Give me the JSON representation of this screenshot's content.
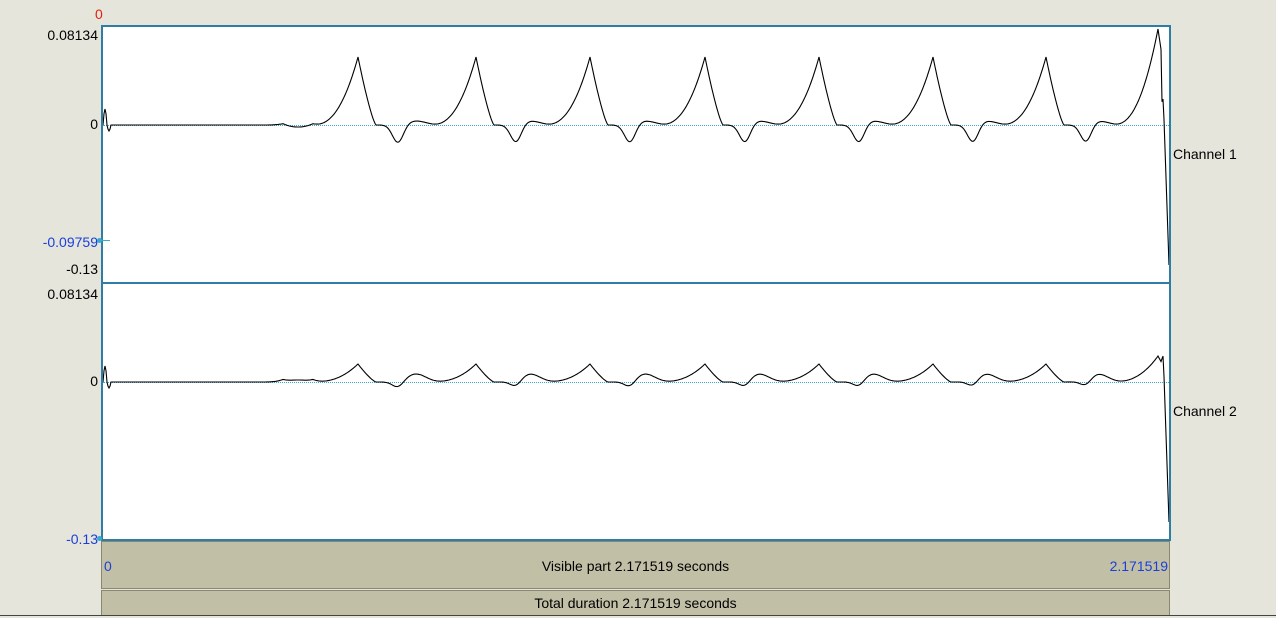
{
  "cursor_time_top": "0",
  "channel1": {
    "name": "Channel 1",
    "y_max": "0.08134",
    "y_zero": "0",
    "y_cursor": "-0.09759",
    "y_min": "-0.13"
  },
  "channel2": {
    "name": "Channel 2",
    "y_max": "0.08134",
    "y_zero": "0",
    "y_min": "-0.13"
  },
  "time_axis": {
    "start": "0",
    "end": "2.171519",
    "visible_part": "Visible part 2.171519 seconds",
    "total_duration": "Total duration 2.171519 seconds"
  },
  "colors": {
    "background": "#e6e5dc",
    "plot_border": "#2e7da4",
    "zero_line": "#3aa8d0",
    "strip": "#c2bfa7",
    "cursor_label": "#1a3fd8",
    "cursor_time": "#e02010"
  }
}
